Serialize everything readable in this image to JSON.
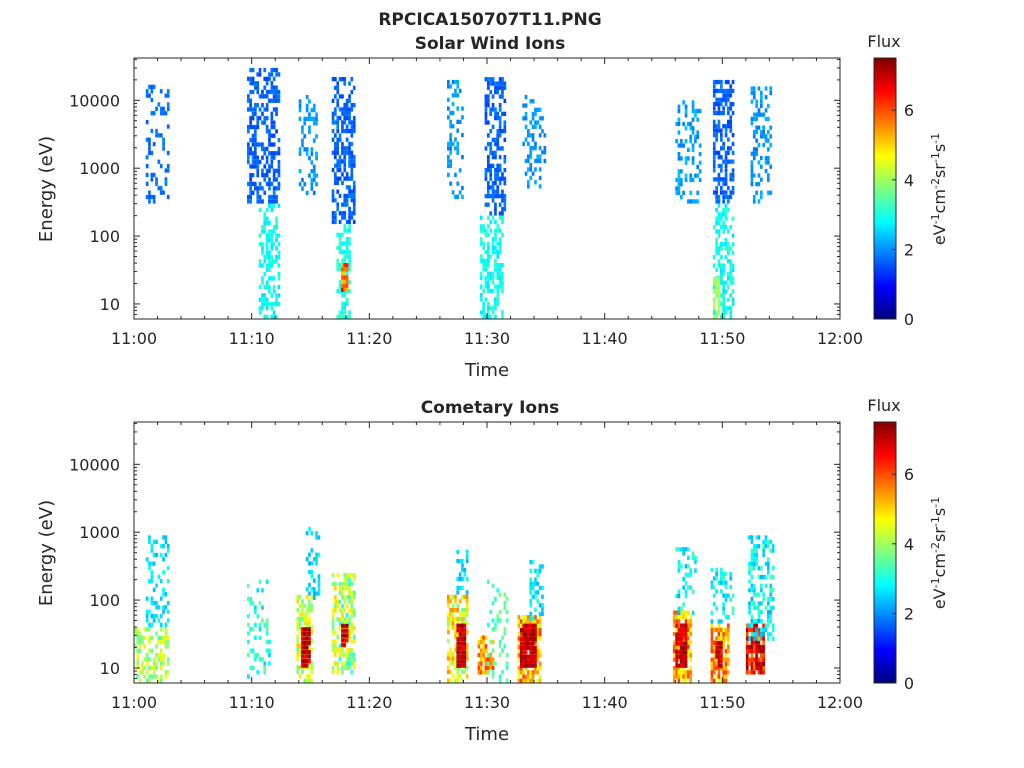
{
  "figure": {
    "title": "RPCICA150707T11.PNG"
  },
  "colormap": {
    "name": "jet",
    "stops": [
      "#00007f",
      "#0000ff",
      "#007fff",
      "#00ffff",
      "#7fff7f",
      "#ffff00",
      "#ff7f00",
      "#ff0000",
      "#7f0000"
    ]
  },
  "chart_data": [
    {
      "type": "heatmap",
      "title": "Solar Wind Ions",
      "xlabel": "Time",
      "ylabel": "Energy (eV)",
      "xlim": [
        "11:00",
        "12:00"
      ],
      "x_tick_labels": [
        "11:00",
        "11:10",
        "11:20",
        "11:30",
        "11:40",
        "11:50",
        "12:00"
      ],
      "y_scale": "log",
      "ylim": [
        6,
        42000
      ],
      "y_tick_labels": [
        "10",
        "100",
        "1000",
        "10000"
      ],
      "colorbar": {
        "label": "Flux",
        "unit_label": "eV-1cm-2sr-1s-1",
        "range": [
          0,
          7.5
        ],
        "tick_labels": [
          "0",
          "2",
          "4",
          "6"
        ]
      },
      "bursts": [
        {
          "t_start_min": 1.0,
          "t_end_min": 3.0,
          "e_min": 300,
          "e_max": 17000,
          "flux_low": 1.6,
          "flux_high": 1.9,
          "density": 0.28
        },
        {
          "t_start_min": 9.6,
          "t_end_min": 12.4,
          "e_min": 300,
          "e_max": 30000,
          "flux_low": 1.4,
          "flux_high": 1.9,
          "density": 0.5
        },
        {
          "t_start_min": 10.6,
          "t_end_min": 12.4,
          "e_min": 6,
          "e_max": 300,
          "flux_low": 2.6,
          "flux_high": 3.2,
          "density": 0.45
        },
        {
          "t_start_min": 14.0,
          "t_end_min": 15.6,
          "e_min": 400,
          "e_max": 12000,
          "flux_low": 1.8,
          "flux_high": 2.3,
          "density": 0.3
        },
        {
          "t_start_min": 16.8,
          "t_end_min": 18.8,
          "e_min": 150,
          "e_max": 22000,
          "flux_low": 1.4,
          "flux_high": 1.9,
          "density": 0.55
        },
        {
          "t_start_min": 17.2,
          "t_end_min": 18.4,
          "e_min": 6,
          "e_max": 150,
          "flux_low": 2.7,
          "flux_high": 3.3,
          "density": 0.6
        },
        {
          "t_start_min": 17.6,
          "t_end_min": 18.1,
          "e_min": 15,
          "e_max": 40,
          "flux_low": 5.0,
          "flux_high": 6.8,
          "density": 0.9
        },
        {
          "t_start_min": 26.6,
          "t_end_min": 28.0,
          "e_min": 350,
          "e_max": 20000,
          "flux_low": 1.8,
          "flux_high": 2.3,
          "density": 0.3
        },
        {
          "t_start_min": 29.8,
          "t_end_min": 31.6,
          "e_min": 200,
          "e_max": 22000,
          "flux_low": 1.4,
          "flux_high": 1.9,
          "density": 0.55
        },
        {
          "t_start_min": 29.4,
          "t_end_min": 31.4,
          "e_min": 6,
          "e_max": 200,
          "flux_low": 2.6,
          "flux_high": 3.2,
          "density": 0.45
        },
        {
          "t_start_min": 33.0,
          "t_end_min": 35.0,
          "e_min": 500,
          "e_max": 12000,
          "flux_low": 1.8,
          "flux_high": 2.3,
          "density": 0.3
        },
        {
          "t_start_min": 46.0,
          "t_end_min": 48.2,
          "e_min": 300,
          "e_max": 10000,
          "flux_low": 1.8,
          "flux_high": 2.4,
          "density": 0.3
        },
        {
          "t_start_min": 49.2,
          "t_end_min": 51.0,
          "e_min": 300,
          "e_max": 20000,
          "flux_low": 1.4,
          "flux_high": 1.9,
          "density": 0.55
        },
        {
          "t_start_min": 49.2,
          "t_end_min": 51.0,
          "e_min": 6,
          "e_max": 300,
          "flux_low": 2.6,
          "flux_high": 3.2,
          "density": 0.5
        },
        {
          "t_start_min": 49.2,
          "t_end_min": 49.8,
          "e_min": 6,
          "e_max": 25,
          "flux_low": 3.8,
          "flux_high": 4.3,
          "density": 0.8
        },
        {
          "t_start_min": 52.4,
          "t_end_min": 54.2,
          "e_min": 300,
          "e_max": 16000,
          "flux_low": 1.8,
          "flux_high": 2.3,
          "density": 0.3
        }
      ]
    },
    {
      "type": "heatmap",
      "title": "Cometary Ions",
      "xlabel": "Time",
      "ylabel": "Energy (eV)",
      "xlim": [
        "11:00",
        "12:00"
      ],
      "x_tick_labels": [
        "11:00",
        "11:10",
        "11:20",
        "11:30",
        "11:40",
        "11:50",
        "12:00"
      ],
      "y_scale": "log",
      "ylim": [
        6,
        42000
      ],
      "y_tick_labels": [
        "10",
        "100",
        "1000",
        "10000"
      ],
      "colorbar": {
        "label": "Flux",
        "unit_label": "eV-1cm-2sr-1s-1",
        "range": [
          0,
          7.5
        ],
        "tick_labels": [
          "0",
          "2",
          "4",
          "6"
        ]
      },
      "bursts": [
        {
          "t_start_min": 0.0,
          "t_end_min": 3.0,
          "e_min": 6,
          "e_max": 40,
          "flux_low": 3.4,
          "flux_high": 4.8,
          "density": 0.45
        },
        {
          "t_start_min": 1.0,
          "t_end_min": 3.0,
          "e_min": 40,
          "e_max": 900,
          "flux_low": 2.3,
          "flux_high": 2.9,
          "density": 0.3
        },
        {
          "t_start_min": 9.6,
          "t_end_min": 11.6,
          "e_min": 6,
          "e_max": 200,
          "flux_low": 2.4,
          "flux_high": 3.6,
          "density": 0.22
        },
        {
          "t_start_min": 13.8,
          "t_end_min": 15.2,
          "e_min": 6,
          "e_max": 120,
          "flux_low": 3.5,
          "flux_high": 5.2,
          "density": 0.6
        },
        {
          "t_start_min": 14.2,
          "t_end_min": 15.0,
          "e_min": 10,
          "e_max": 40,
          "flux_low": 6.5,
          "flux_high": 7.4,
          "density": 0.95
        },
        {
          "t_start_min": 14.6,
          "t_end_min": 15.8,
          "e_min": 100,
          "e_max": 1200,
          "flux_low": 2.2,
          "flux_high": 2.9,
          "density": 0.3
        },
        {
          "t_start_min": 16.8,
          "t_end_min": 18.8,
          "e_min": 8,
          "e_max": 250,
          "flux_low": 3.0,
          "flux_high": 5.0,
          "density": 0.65
        },
        {
          "t_start_min": 17.6,
          "t_end_min": 18.2,
          "e_min": 20,
          "e_max": 45,
          "flux_low": 6.4,
          "flux_high": 7.4,
          "density": 0.95
        },
        {
          "t_start_min": 26.6,
          "t_end_min": 28.4,
          "e_min": 6,
          "e_max": 120,
          "flux_low": 3.6,
          "flux_high": 5.6,
          "density": 0.65
        },
        {
          "t_start_min": 27.4,
          "t_end_min": 28.2,
          "e_min": 10,
          "e_max": 45,
          "flux_low": 6.6,
          "flux_high": 7.4,
          "density": 0.95
        },
        {
          "t_start_min": 27.4,
          "t_end_min": 28.4,
          "e_min": 120,
          "e_max": 550,
          "flux_low": 2.2,
          "flux_high": 2.9,
          "density": 0.35
        },
        {
          "t_start_min": 29.2,
          "t_end_min": 30.6,
          "e_min": 8,
          "e_max": 30,
          "flux_low": 4.8,
          "flux_high": 6.2,
          "density": 0.75
        },
        {
          "t_start_min": 30.0,
          "t_end_min": 31.8,
          "e_min": 6,
          "e_max": 200,
          "flux_low": 3.0,
          "flux_high": 3.8,
          "density": 0.2
        },
        {
          "t_start_min": 32.6,
          "t_end_min": 34.6,
          "e_min": 6,
          "e_max": 60,
          "flux_low": 4.2,
          "flux_high": 6.2,
          "density": 0.75
        },
        {
          "t_start_min": 32.8,
          "t_end_min": 34.2,
          "e_min": 10,
          "e_max": 45,
          "flux_low": 6.6,
          "flux_high": 7.4,
          "density": 0.9
        },
        {
          "t_start_min": 33.6,
          "t_end_min": 34.8,
          "e_min": 50,
          "e_max": 450,
          "flux_low": 2.2,
          "flux_high": 3.2,
          "density": 0.4
        },
        {
          "t_start_min": 45.8,
          "t_end_min": 47.4,
          "e_min": 6,
          "e_max": 70,
          "flux_low": 4.4,
          "flux_high": 6.2,
          "density": 0.75
        },
        {
          "t_start_min": 46.0,
          "t_end_min": 47.0,
          "e_min": 10,
          "e_max": 45,
          "flux_low": 6.6,
          "flux_high": 7.4,
          "density": 0.9
        },
        {
          "t_start_min": 46.0,
          "t_end_min": 47.8,
          "e_min": 60,
          "e_max": 600,
          "flux_low": 2.2,
          "flux_high": 3.4,
          "density": 0.4
        },
        {
          "t_start_min": 49.0,
          "t_end_min": 50.6,
          "e_min": 6,
          "e_max": 45,
          "flux_low": 4.5,
          "flux_high": 6.2,
          "density": 0.7
        },
        {
          "t_start_min": 49.4,
          "t_end_min": 50.0,
          "e_min": 10,
          "e_max": 25,
          "flux_low": 6.4,
          "flux_high": 7.2,
          "density": 0.9
        },
        {
          "t_start_min": 49.0,
          "t_end_min": 51.0,
          "e_min": 45,
          "e_max": 300,
          "flux_low": 2.3,
          "flux_high": 3.4,
          "density": 0.35
        },
        {
          "t_start_min": 52.0,
          "t_end_min": 53.6,
          "e_min": 8,
          "e_max": 45,
          "flux_low": 5.6,
          "flux_high": 7.4,
          "density": 0.85
        },
        {
          "t_start_min": 52.2,
          "t_end_min": 54.4,
          "e_min": 25,
          "e_max": 900,
          "flux_low": 2.2,
          "flux_high": 3.4,
          "density": 0.45
        }
      ]
    }
  ]
}
